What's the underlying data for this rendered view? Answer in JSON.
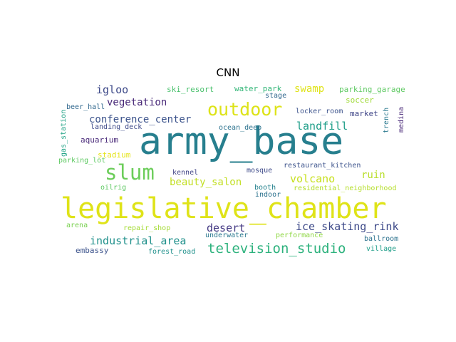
{
  "title": "CNN",
  "colors": {
    "background": "#ffffff",
    "palette": [
      "#440154",
      "#46327e",
      "#365c8d",
      "#277f8e",
      "#1fa187",
      "#4ac16d",
      "#a0da39",
      "#fde725"
    ]
  },
  "words": {
    "army_base": "army_base",
    "legislative_chamber": "legislative_chamber",
    "slum": "slum",
    "outdoor": "outdoor",
    "television_studio": "television_studio",
    "industrial_area": "industrial_area",
    "ice_skating_rink": "ice_skating_rink",
    "conference_center": "conference_center",
    "vegetation": "vegetation",
    "igloo": "igloo",
    "landfill": "landfill",
    "desert": "desert",
    "beauty_salon": "beauty_salon",
    "volcano": "volcano",
    "ruin": "ruin",
    "swamp": "swamp",
    "ski_resort": "ski_resort",
    "water_park": "water_park",
    "parking_garage": "parking_garage",
    "stage": "stage",
    "soccer": "soccer",
    "beer_hall": "beer_hall",
    "locker_room": "locker_room",
    "market": "market",
    "medina": "medina",
    "trench": "trench",
    "landing_deck": "landing_deck",
    "ocean_deep": "ocean_deep",
    "gas_station": "gas_station",
    "aquarium": "aquarium",
    "stadium": "stadium",
    "parking_lot": "parking_lot",
    "restaurant_kitchen": "restaurant_kitchen",
    "kennel": "kennel",
    "mosque": "mosque",
    "oilrig": "oilrig",
    "booth": "booth",
    "residential_neighborhood": "residential_neighborhood",
    "indoor": "indoor",
    "arena": "arena",
    "repair_shop": "repair_shop",
    "underwater": "underwater",
    "performance": "performance",
    "ballroom": "ballroom",
    "embassy": "embassy",
    "forest_road": "forest_road",
    "village": "village"
  }
}
